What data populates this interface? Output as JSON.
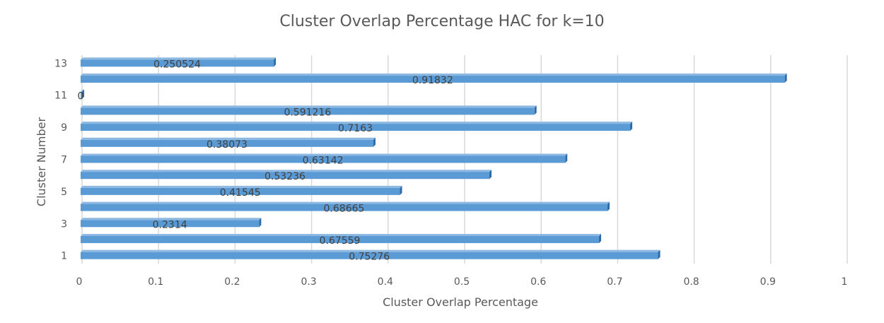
{
  "chart_data": {
    "type": "bar",
    "orientation": "horizontal",
    "title": "Cluster Overlap Percentage HAC for k=10",
    "xlabel": "Cluster Overlap Percentage",
    "ylabel": "Cluster Number",
    "xlim": [
      0,
      1
    ],
    "x_ticks": [
      "0",
      "0.1",
      "0.2",
      "0.3",
      "0.4",
      "0.5",
      "0.6",
      "0.7",
      "0.8",
      "0.9",
      "1"
    ],
    "y_tick_labels": [
      "1",
      "3",
      "5",
      "7",
      "9",
      "11",
      "13"
    ],
    "categories": [
      "1",
      "2",
      "3",
      "4",
      "5",
      "6",
      "7",
      "8",
      "9",
      "10",
      "11",
      "12",
      "13"
    ],
    "values": [
      0.75276,
      0.67559,
      0.2314,
      0.68665,
      0.41545,
      0.53236,
      0.63142,
      0.38073,
      0.7163,
      0.591216,
      0,
      0.91832,
      0.250524
    ],
    "data_labels": [
      "0.75276",
      "0.67559",
      "0.2314",
      "0.68665",
      "0.41545",
      "0.53236",
      "0.63142",
      "0.38073",
      "0.7163",
      "0.591216",
      "0",
      "0.91832",
      "0.250524"
    ],
    "grid": true,
    "legend": "none",
    "bar_color": "#5b9bd5"
  }
}
